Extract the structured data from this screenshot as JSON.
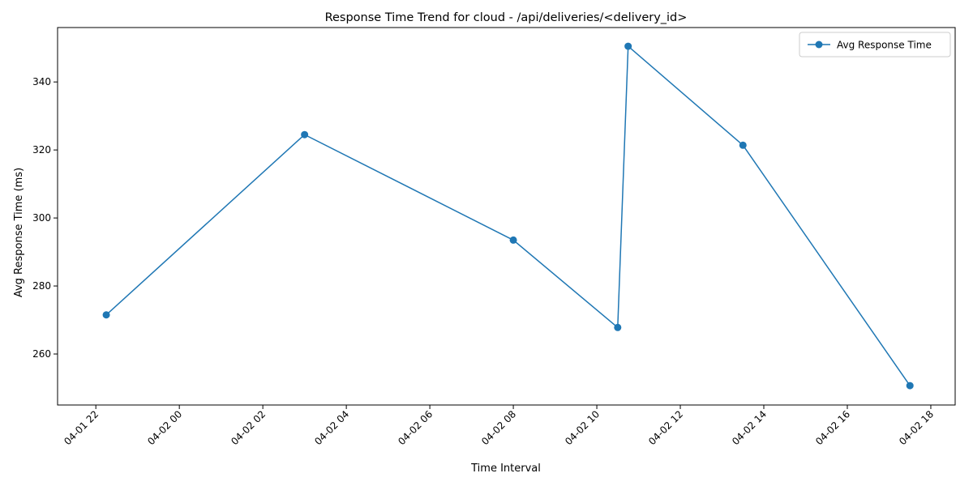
{
  "chart_data": {
    "type": "line",
    "title": "Response Time Trend for cloud - /api/deliveries/<delivery_id>",
    "xlabel": "Time Interval",
    "ylabel": "Avg Response Time (ms)",
    "x_type": "datetime",
    "xlim": [
      "2025-04-01 21:05",
      "2025-04-02 18:35"
    ],
    "ylim": [
      245,
      356
    ],
    "x_ticks": [
      {
        "value": "2025-04-01 22:00",
        "label": "04-01 22"
      },
      {
        "value": "2025-04-02 00:00",
        "label": "04-02 00"
      },
      {
        "value": "2025-04-02 02:00",
        "label": "04-02 02"
      },
      {
        "value": "2025-04-02 04:00",
        "label": "04-02 04"
      },
      {
        "value": "2025-04-02 06:00",
        "label": "04-02 06"
      },
      {
        "value": "2025-04-02 08:00",
        "label": "04-02 08"
      },
      {
        "value": "2025-04-02 10:00",
        "label": "04-02 10"
      },
      {
        "value": "2025-04-02 12:00",
        "label": "04-02 12"
      },
      {
        "value": "2025-04-02 14:00",
        "label": "04-02 14"
      },
      {
        "value": "2025-04-02 16:00",
        "label": "04-02 16"
      },
      {
        "value": "2025-04-02 18:00",
        "label": "04-02 18"
      }
    ],
    "y_ticks": [
      260,
      280,
      300,
      320,
      340
    ],
    "grid": false,
    "legend_position": "top-right",
    "series": [
      {
        "name": "Avg Response Time",
        "color": "#1f77b4",
        "marker": "circle",
        "points": [
          {
            "x": "2025-04-01 22:15",
            "y": 271.5
          },
          {
            "x": "2025-04-02 03:00",
            "y": 324.5
          },
          {
            "x": "2025-04-02 08:00",
            "y": 293.5
          },
          {
            "x": "2025-04-02 10:30",
            "y": 267.8
          },
          {
            "x": "2025-04-02 10:45",
            "y": 350.5
          },
          {
            "x": "2025-04-02 13:30",
            "y": 321.4
          },
          {
            "x": "2025-04-02 17:30",
            "y": 250.7
          }
        ]
      }
    ]
  }
}
